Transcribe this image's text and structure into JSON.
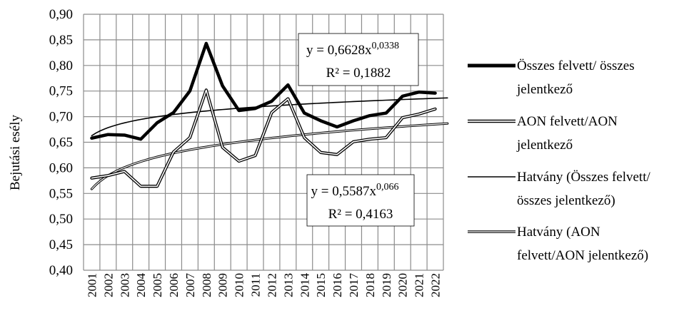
{
  "chart_data": {
    "type": "line",
    "title": "",
    "xlabel": "",
    "ylabel": "Bejutási esély",
    "ylim": [
      0.4,
      0.9
    ],
    "ytick_step": 0.05,
    "yticks": [
      "0,40",
      "0,45",
      "0,50",
      "0,55",
      "0,60",
      "0,65",
      "0,70",
      "0,75",
      "0,80",
      "0,85",
      "0,90"
    ],
    "grid": true,
    "legend_placement": "right",
    "x": [
      "2001",
      "2002",
      "2003",
      "2004",
      "2005",
      "2006",
      "2007",
      "2008",
      "2009",
      "2010",
      "2011",
      "2012",
      "2013",
      "2014",
      "2015",
      "2016",
      "2017",
      "2018",
      "2019",
      "2020",
      "2021",
      "2022"
    ],
    "series": [
      {
        "name": "Összes felvett/ összes jelentkező",
        "legend_lines": [
          "Összes felvett/ összes",
          "jelentkező"
        ],
        "style": "thick",
        "values": [
          0.658,
          0.665,
          0.664,
          0.656,
          0.688,
          0.708,
          0.75,
          0.843,
          0.76,
          0.712,
          0.716,
          0.73,
          0.762,
          0.707,
          0.692,
          0.68,
          0.692,
          0.702,
          0.707,
          0.74,
          0.748,
          0.746
        ]
      },
      {
        "name": "AON felvett/AON jelentkező",
        "legend_lines": [
          "AON felvett/AON",
          "jelentkező"
        ],
        "style": "double",
        "values": [
          0.58,
          0.585,
          0.593,
          0.564,
          0.564,
          0.631,
          0.659,
          0.752,
          0.64,
          0.613,
          0.624,
          0.708,
          0.735,
          0.659,
          0.63,
          0.626,
          0.651,
          0.656,
          0.659,
          0.698,
          0.705,
          0.715
        ]
      },
      {
        "name": "Hatvány (Összes felvett/ összes jelentkező)",
        "legend_lines": [
          "Hatvány (Összes felvett/",
          "összes jelentkező)"
        ],
        "style": "thin",
        "trend": {
          "a": 0.6628,
          "b": 0.0338
        }
      },
      {
        "name": "Hatvány (AON felvett/AON jelentkező)",
        "legend_lines": [
          "Hatvány (AON",
          "felvett/AON jelentkező)"
        ],
        "style": "double-thin",
        "trend": {
          "a": 0.5587,
          "b": 0.066
        }
      }
    ],
    "annotations": [
      {
        "equation_base": "y = 0,6628x",
        "equation_exp": "0,0338",
        "r2": "R² = 0,1882"
      },
      {
        "equation_base": "y = 0,5587x",
        "equation_exp": "0,066",
        "r2": "R² = 0,4163"
      }
    ]
  }
}
